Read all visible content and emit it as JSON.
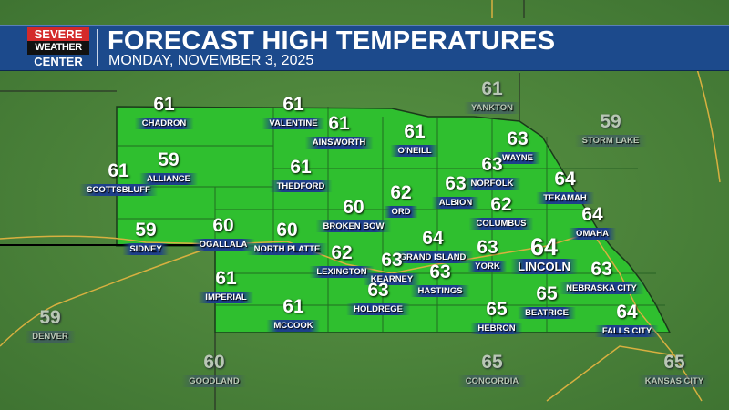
{
  "header": {
    "logo_line1": "SEVERE",
    "logo_line2": "WEATHER",
    "logo_line3": "CENTER",
    "title": "FORECAST HIGH TEMPERATURES",
    "subtitle": "MONDAY, NOVEMBER 3, 2025"
  },
  "colors": {
    "banner": "#1c4a8c",
    "logo_red": "#d42a2a",
    "state_fill": "#2fbf2f",
    "background": "#4f8a3c",
    "highway": "#d8b040"
  },
  "cities": [
    {
      "name": "CHADRON",
      "temp": "61"
    },
    {
      "name": "VALENTINE",
      "temp": "61"
    },
    {
      "name": "AINSWORTH",
      "temp": "61"
    },
    {
      "name": "O'NEILL",
      "temp": "61"
    },
    {
      "name": "WAYNE",
      "temp": "63"
    },
    {
      "name": "ALLIANCE",
      "temp": "59"
    },
    {
      "name": "SCOTTSBLUFF",
      "temp": "61"
    },
    {
      "name": "THEDFORD",
      "temp": "61"
    },
    {
      "name": "NORFOLK",
      "temp": "63"
    },
    {
      "name": "TEKAMAH",
      "temp": "64"
    },
    {
      "name": "ALBION",
      "temp": "63"
    },
    {
      "name": "ORD",
      "temp": "62"
    },
    {
      "name": "BROKEN BOW",
      "temp": "60"
    },
    {
      "name": "COLUMBUS",
      "temp": "62"
    },
    {
      "name": "OMAHA",
      "temp": "64"
    },
    {
      "name": "SIDNEY",
      "temp": "59"
    },
    {
      "name": "OGALLALA",
      "temp": "60"
    },
    {
      "name": "NORTH PLATTE",
      "temp": "60"
    },
    {
      "name": "GRAND ISLAND",
      "temp": "64"
    },
    {
      "name": "YORK",
      "temp": "63"
    },
    {
      "name": "LINCOLN",
      "temp": "64"
    },
    {
      "name": "LEXINGTON",
      "temp": "62"
    },
    {
      "name": "KEARNEY",
      "temp": "63"
    },
    {
      "name": "HASTINGS",
      "temp": "63"
    },
    {
      "name": "NEBRASKA CITY",
      "temp": "63"
    },
    {
      "name": "IMPERIAL",
      "temp": "61"
    },
    {
      "name": "HOLDREGE",
      "temp": "63"
    },
    {
      "name": "BEATRICE",
      "temp": "65"
    },
    {
      "name": "MCCOOK",
      "temp": "61"
    },
    {
      "name": "HEBRON",
      "temp": "65"
    },
    {
      "name": "FALLS CITY",
      "temp": "64"
    }
  ],
  "outside_cities": [
    {
      "name": "YANKTON",
      "temp": "61"
    },
    {
      "name": "STORM LAKE",
      "temp": "59"
    },
    {
      "name": "DENVER",
      "temp": "59"
    },
    {
      "name": "GOODLAND",
      "temp": "60"
    },
    {
      "name": "CONCORDIA",
      "temp": "65"
    },
    {
      "name": "KANSAS CITY",
      "temp": "65"
    }
  ]
}
